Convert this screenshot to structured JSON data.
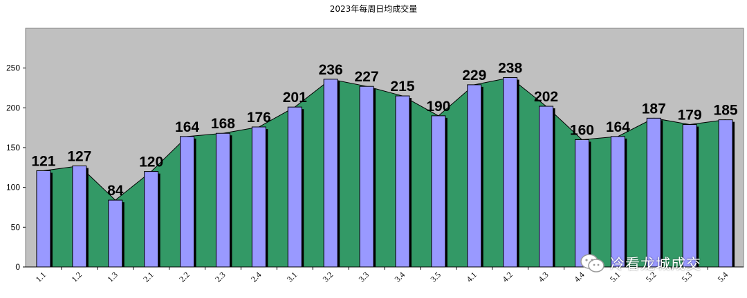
{
  "chart_data": {
    "type": "bar",
    "title": "2023年每周日均成交量",
    "categories": [
      "1.1",
      "1.2",
      "1.3",
      "2.1",
      "2.2",
      "2.3",
      "2.4",
      "3.1",
      "3.2",
      "3.3",
      "3.4",
      "3.5",
      "4.1",
      "4.2",
      "4.3",
      "4.4",
      "5.1",
      "5.2",
      "5.3",
      "5.4"
    ],
    "values": [
      121,
      127,
      84,
      120,
      164,
      168,
      176,
      201,
      236,
      227,
      215,
      190,
      229,
      238,
      202,
      160,
      164,
      187,
      179,
      185
    ],
    "ylim": [
      0,
      300
    ],
    "yticks": [
      0,
      50,
      100,
      150,
      200,
      250
    ],
    "grid": false,
    "overlay": "area",
    "colors": {
      "plot_background": "#c0c0c0",
      "area_fill": "#339966",
      "bar_fill": "#9999ff",
      "bar_shadow": "#000000"
    }
  },
  "watermark": {
    "icon": "wechat-icon",
    "text": "冷看龙城成交"
  }
}
